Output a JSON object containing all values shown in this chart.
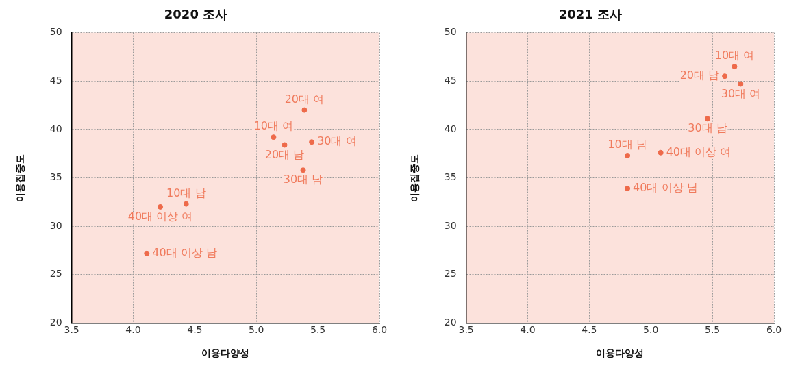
{
  "chart_data": [
    {
      "type": "scatter",
      "title": "2020 조사",
      "xlabel": "이용다양성",
      "ylabel": "이용집중도",
      "series": [
        {
          "color": "#ee6a4a",
          "x": [
            5.39,
            5.14,
            5.23,
            5.45,
            5.38,
            4.43,
            4.22,
            4.11
          ],
          "values": [
            42.0,
            39.2,
            38.4,
            38.7,
            35.8,
            32.3,
            32.0,
            27.2
          ]
        }
      ],
      "annotations": [
        {
          "text": "20대 여",
          "x": 5.39,
          "y": 42.0
        },
        {
          "text": "10대 여",
          "x": 5.14,
          "y": 39.2
        },
        {
          "text": "20대 남",
          "x": 5.23,
          "y": 38.4
        },
        {
          "text": "30대 여",
          "x": 5.45,
          "y": 38.7
        },
        {
          "text": "30대 남",
          "x": 5.38,
          "y": 35.8
        },
        {
          "text": "10대 남",
          "x": 4.43,
          "y": 32.3
        },
        {
          "text": "40대 이상 여",
          "x": 4.22,
          "y": 32.0
        },
        {
          "text": "40대 이상 남",
          "x": 4.11,
          "y": 27.2
        }
      ],
      "xlim": [
        3.5,
        6.0
      ],
      "xticks": [
        {
          "value": 3.5,
          "label": "3.5"
        },
        {
          "value": 4.0,
          "label": "4.0"
        },
        {
          "value": 4.5,
          "label": "4.5"
        },
        {
          "value": 5.0,
          "label": "5.0"
        },
        {
          "value": 5.5,
          "label": "5.5"
        },
        {
          "value": 6.0,
          "label": "6.0"
        }
      ],
      "ylim": [
        20,
        50
      ],
      "yticks": [
        20,
        25,
        30,
        35,
        40,
        45,
        50
      ],
      "grid": true,
      "legend": false,
      "marker": "circle"
    },
    {
      "type": "scatter",
      "title": "2021 조사",
      "xlabel": "이용다양성",
      "ylabel": "이용집중도",
      "series": [
        {
          "color": "#ee6a4a",
          "x": [
            5.68,
            5.6,
            5.73,
            5.46,
            5.08,
            4.81,
            4.81
          ],
          "values": [
            46.5,
            45.5,
            44.7,
            41.1,
            37.6,
            37.3,
            33.9
          ]
        }
      ],
      "annotations": [
        {
          "text": "10대 여",
          "x": 5.68,
          "y": 46.5
        },
        {
          "text": "20대 남",
          "x": 5.6,
          "y": 45.5
        },
        {
          "text": "30대 여",
          "x": 5.73,
          "y": 44.7
        },
        {
          "text": "30대 남",
          "x": 5.46,
          "y": 41.1
        },
        {
          "text": "40대 이상 여",
          "x": 5.08,
          "y": 37.6
        },
        {
          "text": "10대 남",
          "x": 4.81,
          "y": 37.3
        },
        {
          "text": "40대 이상 남",
          "x": 4.81,
          "y": 33.9
        }
      ],
      "xlim": [
        3.5,
        6.0
      ],
      "xticks": [
        {
          "value": 3.5,
          "label": "3.5"
        },
        {
          "value": 4.0,
          "label": "4.0"
        },
        {
          "value": 4.5,
          "label": "4.5"
        },
        {
          "value": 5.0,
          "label": "5.0"
        },
        {
          "value": 5.5,
          "label": "5.5"
        },
        {
          "value": 6.0,
          "label": "6.0"
        }
      ],
      "ylim": [
        20,
        50
      ],
      "yticks": [
        20,
        25,
        30,
        35,
        40,
        45,
        50
      ],
      "grid": true,
      "legend": false,
      "marker": "circle"
    }
  ]
}
